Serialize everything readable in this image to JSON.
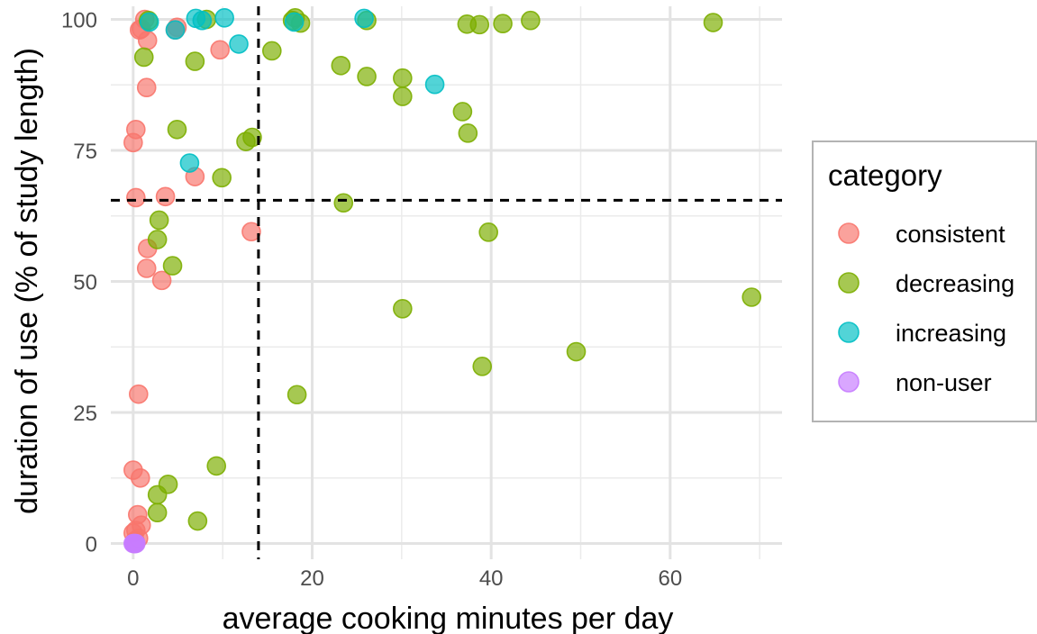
{
  "chart_data": {
    "type": "scatter",
    "title": "",
    "xlabel": "average cooking minutes per day",
    "ylabel": "duration of use (% of study length)",
    "xlim": [
      -2.5,
      72.5
    ],
    "ylim": [
      -3,
      102.5
    ],
    "x_ticks": [
      0,
      20,
      40,
      60
    ],
    "y_ticks": [
      0,
      25,
      50,
      75,
      100
    ],
    "grid": true,
    "reference_lines": {
      "vertical_x": 14,
      "horizontal_y": 65.5
    },
    "legend": {
      "title": "category",
      "position": "right",
      "entries": [
        {
          "label": "consistent",
          "color": "#F8766D"
        },
        {
          "label": "decreasing",
          "color": "#7CAE00"
        },
        {
          "label": "increasing",
          "color": "#00BFC4"
        },
        {
          "label": "non-user",
          "color": "#C77CFF"
        }
      ]
    },
    "series": [
      {
        "name": "consistent",
        "color": "#F8766D",
        "points": [
          [
            1.3,
            100
          ],
          [
            0.7,
            98
          ],
          [
            0.9,
            98.2
          ],
          [
            4.9,
            98.5
          ],
          [
            4.7,
            98
          ],
          [
            1.6,
            96
          ],
          [
            9.7,
            94.2
          ],
          [
            1.5,
            87
          ],
          [
            0.3,
            79
          ],
          [
            0,
            76.5
          ],
          [
            6.9,
            70
          ],
          [
            0.3,
            66
          ],
          [
            3.6,
            66.2
          ],
          [
            13.2,
            59.5
          ],
          [
            1.6,
            56.3
          ],
          [
            1.5,
            52.5
          ],
          [
            3.2,
            50.2
          ],
          [
            0.6,
            28.5
          ],
          [
            0,
            14
          ],
          [
            0.8,
            12.5
          ],
          [
            0.5,
            5.5
          ],
          [
            0.9,
            3.5
          ],
          [
            0.3,
            2.5
          ],
          [
            0,
            2
          ],
          [
            0.6,
            1
          ],
          [
            0.2,
            0.5
          ]
        ]
      },
      {
        "name": "decreasing",
        "color": "#7CAE00",
        "points": [
          [
            1.7,
            99.8
          ],
          [
            8.2,
            100
          ],
          [
            17.8,
            99.8
          ],
          [
            18.1,
            100.3
          ],
          [
            18.7,
            99.3
          ],
          [
            26.1,
            99.8
          ],
          [
            37.3,
            99.1
          ],
          [
            38.7,
            99
          ],
          [
            41.3,
            99.2
          ],
          [
            44.4,
            99.8
          ],
          [
            64.8,
            99.4
          ],
          [
            1.2,
            92.8
          ],
          [
            6.9,
            92
          ],
          [
            15.5,
            94
          ],
          [
            23.2,
            91.2
          ],
          [
            26.1,
            89.1
          ],
          [
            30.1,
            88.8
          ],
          [
            30.1,
            85.3
          ],
          [
            36.8,
            82.4
          ],
          [
            37.4,
            78.3
          ],
          [
            4.9,
            79
          ],
          [
            12.6,
            76.7
          ],
          [
            13.3,
            77.5
          ],
          [
            9.9,
            69.8
          ],
          [
            23.5,
            65
          ],
          [
            2.9,
            61.7
          ],
          [
            2.7,
            58
          ],
          [
            4.4,
            53
          ],
          [
            39.7,
            59.4
          ],
          [
            30.1,
            44.8
          ],
          [
            69.1,
            47
          ],
          [
            49.5,
            36.6
          ],
          [
            39,
            33.8
          ],
          [
            18.3,
            28.4
          ],
          [
            9.3,
            14.8
          ],
          [
            3.9,
            11.3
          ],
          [
            2.7,
            9.3
          ],
          [
            2.7,
            5.9
          ],
          [
            7.2,
            4.3
          ]
        ]
      },
      {
        "name": "increasing",
        "color": "#00BFC4",
        "points": [
          [
            1.8,
            99.5
          ],
          [
            7,
            100.2
          ],
          [
            7.7,
            99.8
          ],
          [
            10.2,
            100.3
          ],
          [
            4.7,
            98
          ],
          [
            11.8,
            95.3
          ],
          [
            25.8,
            100.2
          ],
          [
            18,
            99.5
          ],
          [
            33.7,
            87.6
          ],
          [
            6.3,
            72.6
          ]
        ]
      },
      {
        "name": "non-user",
        "color": "#C77CFF",
        "points": [
          [
            0,
            0
          ],
          [
            0.1,
            0
          ],
          [
            0.2,
            0
          ],
          [
            0.3,
            0
          ]
        ]
      }
    ]
  }
}
